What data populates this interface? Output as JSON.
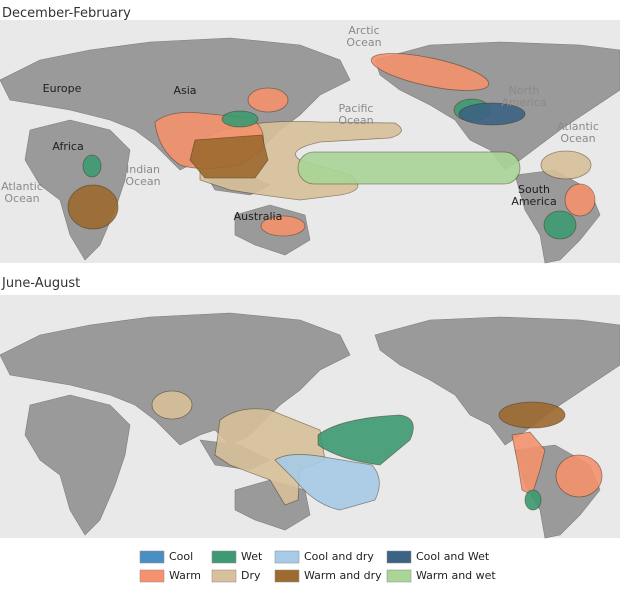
{
  "panels": [
    {
      "title": "December-February",
      "labels": [
        {
          "lines": [
            "Arctic",
            "Ocean"
          ],
          "kind": "ocean"
        },
        {
          "lines": [
            "Europe"
          ],
          "kind": "land"
        },
        {
          "lines": [
            "Asia"
          ],
          "kind": "land"
        },
        {
          "lines": [
            "Africa"
          ],
          "kind": "land"
        },
        {
          "lines": [
            "Atlantic",
            "Ocean"
          ],
          "kind": "ocean"
        },
        {
          "lines": [
            "Indian",
            "Ocean"
          ],
          "kind": "ocean"
        },
        {
          "lines": [
            "Pacific",
            "Ocean"
          ],
          "kind": "ocean"
        },
        {
          "lines": [
            "North",
            "America"
          ],
          "kind": "ocean"
        },
        {
          "lines": [
            "Atlantic",
            "Ocean"
          ],
          "kind": "ocean"
        },
        {
          "lines": [
            "South",
            "America"
          ],
          "kind": "land"
        },
        {
          "lines": [
            "Australia"
          ],
          "kind": "land"
        }
      ]
    },
    {
      "title": "June-August",
      "labels": []
    }
  ],
  "legend": [
    {
      "label": "Cool",
      "color": "#4a8fc4"
    },
    {
      "label": "Warm",
      "color": "#f4926d"
    },
    {
      "label": "Wet",
      "color": "#3d9a72"
    },
    {
      "label": "Dry",
      "color": "#d8c09b"
    },
    {
      "label": "Cool and dry",
      "color": "#a7cbe6"
    },
    {
      "label": "Warm and dry",
      "color": "#9d6a2f"
    },
    {
      "label": "Cool and Wet",
      "color": "#3c6384"
    },
    {
      "label": "Warm and wet",
      "color": "#a9d596"
    }
  ]
}
